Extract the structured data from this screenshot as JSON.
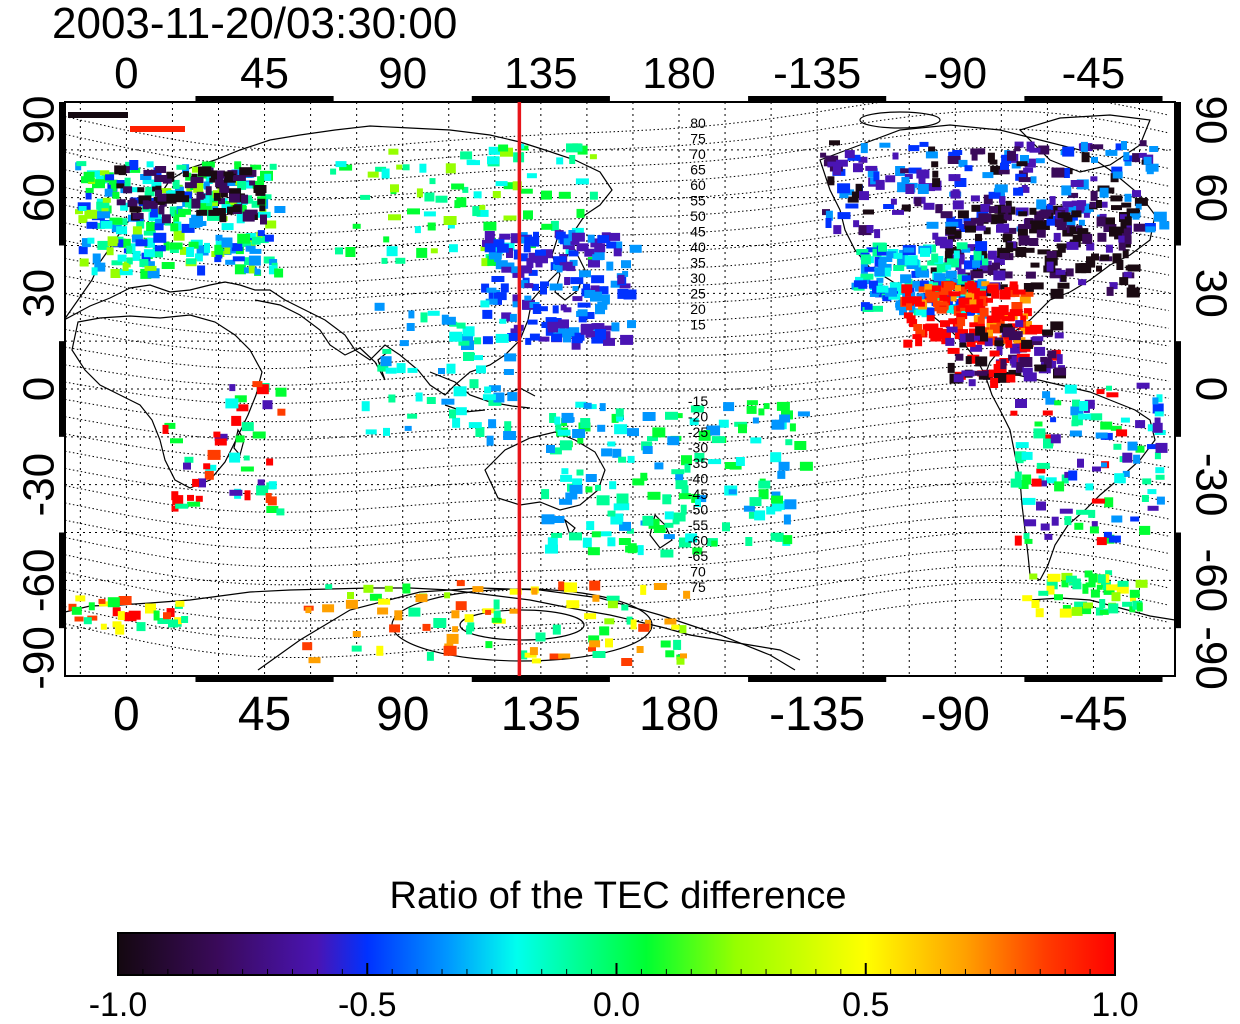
{
  "timestamp": "2003-11-20/03:30:00",
  "axes": {
    "lon_ticks": [
      "0",
      "45",
      "90",
      "135",
      "180",
      "-135",
      "-90",
      "-45"
    ],
    "lat_ticks": [
      "90",
      "60",
      "30",
      "0",
      "-30",
      "-60",
      "-90"
    ]
  },
  "reference_meridian": {
    "lon": 128,
    "color": "#e8141a"
  },
  "contour_labels": {
    "north": [
      "80",
      "75",
      "70",
      "65",
      "60",
      "55",
      "50",
      "45",
      "40",
      "35",
      "30",
      "25",
      "20",
      "15"
    ],
    "south": [
      "-15",
      "-20",
      "-25",
      "-30",
      "-35",
      "-40",
      "-45",
      "-50",
      "-55",
      "-60",
      "-65",
      "70",
      "75"
    ]
  },
  "colorbar": {
    "title": "Ratio of the TEC difference",
    "ticks": [
      "-1.0",
      "-0.5",
      "0.0",
      "0.5",
      "1.0"
    ],
    "range": [
      -1.0,
      1.0
    ],
    "colors": [
      "#1a0a12",
      "#3a0a5a",
      "#4a14b4",
      "#0032ff",
      "#0096ff",
      "#00ffee",
      "#00ff96",
      "#00ff32",
      "#96ff00",
      "#ffff00",
      "#ffa000",
      "#ff3c00",
      "#ff0000"
    ]
  }
}
